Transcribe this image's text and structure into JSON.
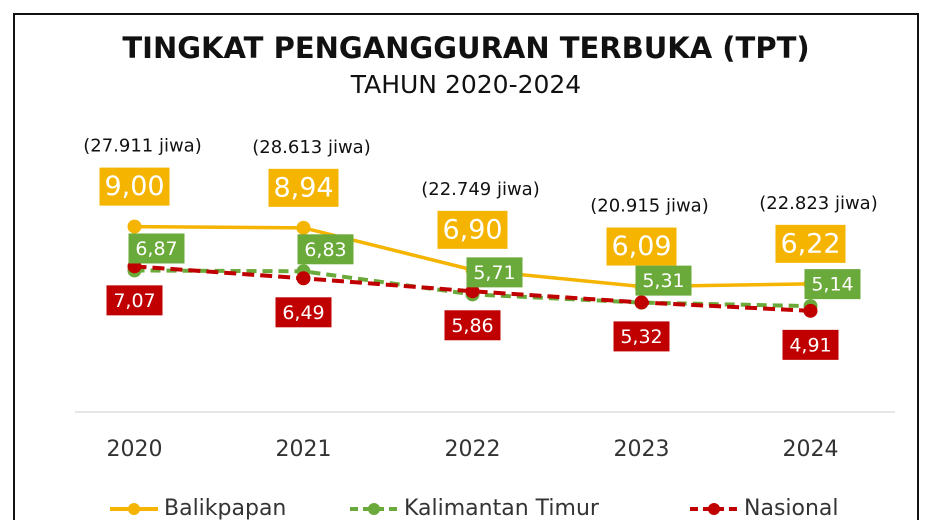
{
  "chart_data": {
    "type": "line",
    "title": "TINGKAT PENGANGGURAN TERBUKA (TPT)",
    "subtitle": "TAHUN 2020-2024",
    "categories": [
      "2020",
      "2021",
      "2022",
      "2023",
      "2024"
    ],
    "series": [
      {
        "name": "Balikpapan",
        "color": "#f5b400",
        "values": [
          9.0,
          8.94,
          6.9,
          6.09,
          6.22
        ],
        "value_labels": [
          "9,00",
          "8,94",
          "6,90",
          "6,09",
          "6,22"
        ]
      },
      {
        "name": "Kalimantan Timur",
        "color": "#6aaa3a",
        "values": [
          6.87,
          6.83,
          5.71,
          5.31,
          5.14
        ],
        "value_labels": [
          "6,87",
          "6,83",
          "5,71",
          "5,31",
          "5,14"
        ]
      },
      {
        "name": "Nasional",
        "color": "#c00000",
        "values": [
          7.07,
          6.49,
          5.86,
          5.32,
          4.91
        ],
        "value_labels": [
          "7,07",
          "6,49",
          "5,86",
          "5,32",
          "4,91"
        ]
      }
    ],
    "annotations": [
      "(27.911 jiwa)",
      "(28.613 jiwa)",
      "(22.749 jiwa)",
      "(20.915 jiwa)",
      "(22.823 jiwa)"
    ],
    "ylim": [
      0,
      10
    ]
  }
}
